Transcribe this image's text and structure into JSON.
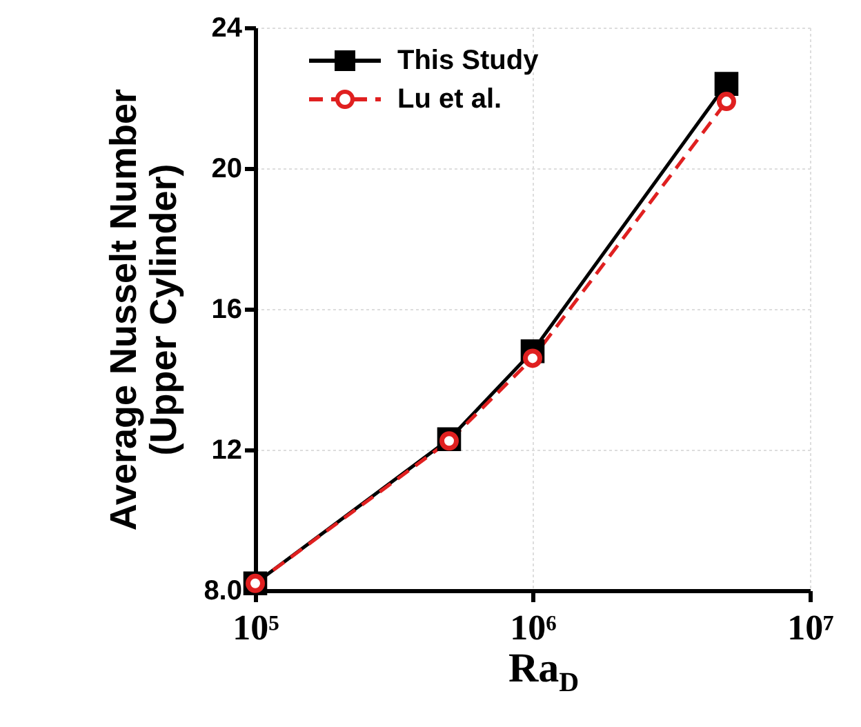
{
  "chart_data": {
    "type": "line",
    "xlabel": "Ra$_{D}$",
    "ylabel": "Average Nusselt Number\n(Upper Cylinder)",
    "x": [
      100000,
      500000,
      1000000,
      5000000
    ],
    "series": [
      {
        "name": "This Study",
        "color": "#000000",
        "values": [
          8.2,
          12.3,
          14.8,
          22.4
        ],
        "marker": "square",
        "line_style": "solid"
      },
      {
        "name": "Lu et al.",
        "color": "#e02020",
        "values": [
          8.2,
          12.25,
          14.6,
          21.9
        ],
        "marker": "circle",
        "line_style": "dashed"
      }
    ],
    "log": "x",
    "xlim": [
      100000,
      10000000
    ],
    "ylim": [
      8,
      24
    ],
    "xticks": [
      {
        "value": 100000,
        "label": "10⁵"
      },
      {
        "value": 1000000,
        "label": "10⁶"
      },
      {
        "value": 10000000,
        "label": "10⁷"
      }
    ],
    "yticks": [
      {
        "value": 8,
        "label": "8.0"
      },
      12,
      16,
      20,
      24
    ],
    "grid": true,
    "legend": "top left"
  }
}
